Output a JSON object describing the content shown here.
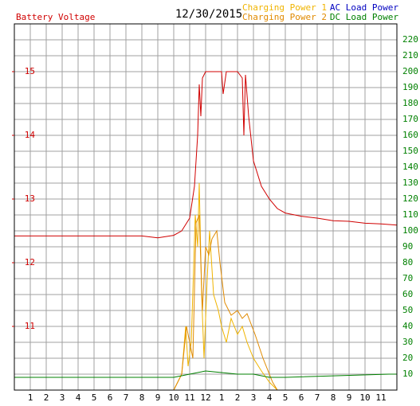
{
  "chart_data": {
    "type": "line",
    "title": "12/30/2015",
    "y_label": "Battery Voltage",
    "xlim": [
      0,
      24
    ],
    "xticks": [
      1,
      2,
      3,
      4,
      5,
      6,
      7,
      8,
      9,
      10,
      11,
      12,
      {
        "value": 13,
        "label": "1"
      },
      {
        "value": 14,
        "label": "2"
      },
      {
        "value": 15,
        "label": "3"
      },
      {
        "value": 16,
        "label": "4"
      },
      {
        "value": 17,
        "label": "5"
      },
      {
        "value": 18,
        "label": "6"
      },
      {
        "value": 19,
        "label": "7"
      },
      {
        "value": 20,
        "label": "8"
      },
      {
        "value": 21,
        "label": "9"
      },
      {
        "value": 22,
        "label": "10"
      },
      {
        "value": 23,
        "label": "11"
      }
    ],
    "ylim": [
      10,
      15.75
    ],
    "yticks": [
      11,
      12,
      13,
      14,
      15
    ],
    "y2lim": [
      0,
      230
    ],
    "y2ticks": [
      10,
      20,
      30,
      40,
      50,
      60,
      70,
      80,
      90,
      100,
      110,
      120,
      130,
      140,
      150,
      160,
      170,
      180,
      190,
      200,
      210,
      220
    ],
    "grid": true,
    "y_color": "#d00000",
    "y2_color": "#008000",
    "series": [
      {
        "name": "Battery Voltage",
        "color": "#d00000",
        "axis": "y",
        "x": [
          0,
          8,
          9,
          10,
          10.5,
          11,
          11.3,
          11.5,
          11.6,
          11.7,
          11.8,
          12,
          12.5,
          13,
          13.1,
          13.3,
          14,
          14.3,
          14.4,
          14.5,
          14.7,
          15,
          15.5,
          16,
          16.5,
          17,
          18,
          19,
          20,
          21,
          22,
          23,
          24
        ],
        "values": [
          12.42,
          12.42,
          12.39,
          12.43,
          12.5,
          12.7,
          13.2,
          14.0,
          14.8,
          14.3,
          14.9,
          15.0,
          15.0,
          15.0,
          14.65,
          15.0,
          15.0,
          14.9,
          14.0,
          14.95,
          14.3,
          13.6,
          13.2,
          13.0,
          12.85,
          12.78,
          12.73,
          12.7,
          12.66,
          12.65,
          12.62,
          12.61,
          12.59
        ]
      },
      {
        "name": "Charging Power 1",
        "color": "#f0b400",
        "axis": "y2",
        "x": [
          0,
          10,
          10.5,
          10.75,
          10.9,
          11.1,
          11.35,
          11.5,
          11.6,
          11.75,
          11.9,
          12.1,
          12.25,
          12.5,
          12.8,
          13,
          13.3,
          13.6,
          14,
          14.3,
          14.6,
          15,
          15.5,
          16,
          16.5,
          24
        ],
        "values": [
          0,
          0,
          10,
          40,
          15,
          30,
          110,
          90,
          130,
          60,
          20,
          70,
          100,
          60,
          50,
          40,
          30,
          45,
          35,
          40,
          30,
          20,
          12,
          5,
          0,
          0
        ]
      },
      {
        "name": "Charging Power 2",
        "color": "#e08a00",
        "axis": "y2",
        "x": [
          0,
          10,
          10.5,
          10.8,
          11.2,
          11.4,
          11.6,
          11.8,
          12,
          12.2,
          12.4,
          12.7,
          12.9,
          13.2,
          13.6,
          14,
          14.3,
          14.6,
          15.1,
          15.6,
          16.2,
          16.5,
          24
        ],
        "values": [
          0,
          0,
          10,
          40,
          20,
          105,
          110,
          50,
          90,
          85,
          95,
          100,
          80,
          55,
          47,
          50,
          45,
          48,
          35,
          20,
          5,
          0,
          0
        ]
      },
      {
        "name": "AC Load Power",
        "color": "#0000c0",
        "axis": "y2",
        "x": [
          0,
          24
        ],
        "values": [
          0,
          0
        ]
      },
      {
        "name": "DC Load Power",
        "color": "#008000",
        "axis": "y2",
        "x": [
          0,
          10,
          11,
          12,
          13,
          14,
          15,
          16,
          17,
          23.5,
          24
        ],
        "values": [
          8,
          8,
          10,
          12,
          11,
          10,
          10,
          8,
          8,
          10,
          10
        ]
      }
    ]
  }
}
